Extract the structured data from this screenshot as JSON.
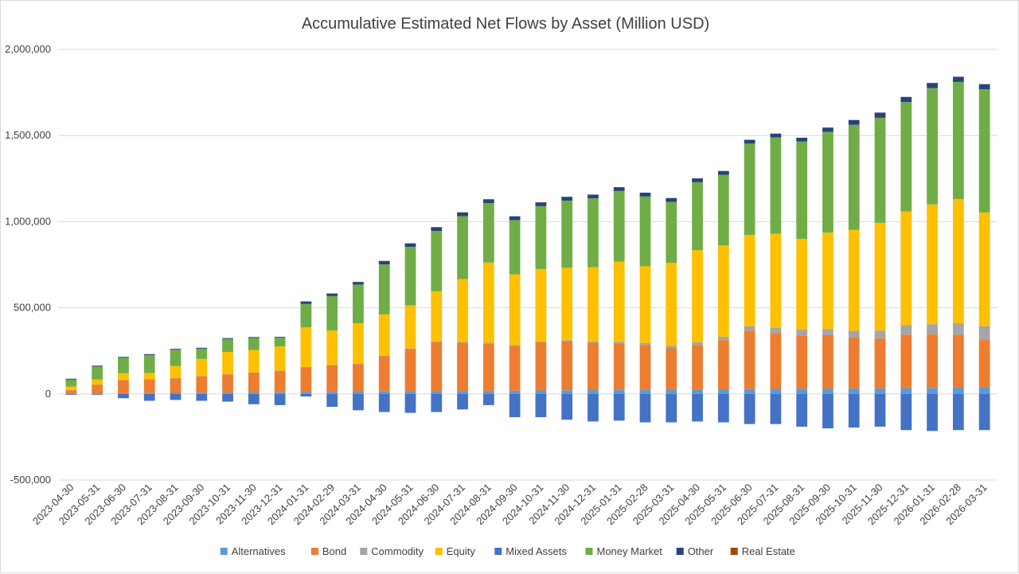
{
  "chart_data": {
    "type": "bar",
    "stacked": true,
    "title": "Accumulative Estimated Net Flows by Asset (Million USD)",
    "xlabel": "",
    "ylabel": "",
    "ylim": [
      -500000,
      2000000
    ],
    "y_ticks": [
      2000000,
      1500000,
      1000000,
      500000,
      0,
      -500000
    ],
    "y_tick_labels": [
      "2,000,000",
      "1,500,000",
      "1,000,000",
      "500,000",
      "0",
      "-500,000"
    ],
    "grid": true,
    "legend_position": "bottom",
    "categories": [
      "2023-04-30",
      "2023-05-31",
      "2023-06-30",
      "2023-07-31",
      "2023-08-31",
      "2023-09-30",
      "2023-10-31",
      "2023-11-30",
      "2023-12-31",
      "2024-01-31",
      "2024-02-29",
      "2024-03-31",
      "2024-04-30",
      "2024-05-31",
      "2024-06-30",
      "2024-07-31",
      "2024-08-31",
      "2024-09-30",
      "2024-10-31",
      "2024-11-30",
      "2024-12-31",
      "2025-01-31",
      "2025-02-28",
      "2025-03-31",
      "2025-04-30",
      "2025-05-31",
      "2025-06-30",
      "2025-07-31",
      "2025-08-31",
      "2025-09-30",
      "2025-10-31",
      "2025-11-30",
      "2025-12-31",
      "2026-01-31",
      "2026-02-28",
      "2026-03-31"
    ],
    "series": [
      {
        "name": "Alternatives",
        "color": "#5b9bd5",
        "values": [
          2000,
          3000,
          4000,
          5000,
          6000,
          7000,
          8000,
          9000,
          10000,
          11000,
          12000,
          13000,
          14000,
          15000,
          16000,
          17000,
          18000,
          19000,
          20000,
          21000,
          22000,
          23000,
          24000,
          25000,
          26000,
          27000,
          28000,
          29000,
          30000,
          31000,
          32000,
          33000,
          34000,
          35000,
          36000,
          38000
        ]
      },
      {
        "name": "Bond",
        "color": "#ed7d31",
        "values": [
          20000,
          50000,
          75000,
          80000,
          85000,
          95000,
          105000,
          115000,
          125000,
          145000,
          155000,
          160000,
          205000,
          245000,
          285000,
          280000,
          275000,
          260000,
          280000,
          285000,
          275000,
          270000,
          260000,
          240000,
          255000,
          285000,
          340000,
          325000,
          310000,
          310000,
          295000,
          290000,
          310000,
          310000,
          305000,
          275000
        ]
      },
      {
        "name": "Commodity",
        "color": "#a5a5a5",
        "values": [
          1000,
          1000,
          1000,
          1000,
          1000,
          1000,
          1000,
          1000,
          1000,
          1000,
          1000,
          2000,
          3000,
          4000,
          5000,
          5000,
          5000,
          5000,
          5000,
          6000,
          8000,
          10000,
          12000,
          15000,
          18000,
          20000,
          25000,
          30000,
          35000,
          35000,
          40000,
          45000,
          55000,
          60000,
          70000,
          80000
        ]
      },
      {
        "name": "Equity",
        "color": "#ffc000",
        "values": [
          20000,
          30000,
          40000,
          35000,
          70000,
          100000,
          130000,
          130000,
          140000,
          230000,
          200000,
          235000,
          240000,
          250000,
          290000,
          365000,
          465000,
          410000,
          420000,
          420000,
          430000,
          465000,
          445000,
          480000,
          535000,
          530000,
          530000,
          545000,
          525000,
          560000,
          585000,
          625000,
          660000,
          695000,
          720000,
          660000
        ]
      },
      {
        "name": "Mixed Assets",
        "color": "#4472c4",
        "values": [
          -5000,
          -5000,
          -25000,
          -40000,
          -35000,
          -40000,
          -45000,
          -60000,
          -65000,
          -15000,
          -75000,
          -95000,
          -105000,
          -110000,
          -105000,
          -90000,
          -65000,
          -135000,
          -135000,
          -150000,
          -160000,
          -155000,
          -165000,
          -165000,
          -160000,
          -165000,
          -175000,
          -175000,
          -190000,
          -200000,
          -195000,
          -190000,
          -210000,
          -215000,
          -210000,
          -210000
        ]
      },
      {
        "name": "Money Market",
        "color": "#70ad47",
        "values": [
          40000,
          75000,
          90000,
          105000,
          95000,
          60000,
          75000,
          70000,
          50000,
          135000,
          200000,
          225000,
          290000,
          340000,
          350000,
          365000,
          345000,
          315000,
          365000,
          390000,
          400000,
          410000,
          405000,
          355000,
          395000,
          410000,
          530000,
          560000,
          565000,
          585000,
          610000,
          610000,
          635000,
          675000,
          680000,
          715000
        ]
      },
      {
        "name": "Other",
        "color": "#264478",
        "values": [
          5000,
          5000,
          5000,
          5000,
          5000,
          5000,
          5000,
          5000,
          5000,
          15000,
          15000,
          15000,
          20000,
          20000,
          22000,
          22000,
          22000,
          22000,
          22000,
          22000,
          22000,
          22000,
          22000,
          22000,
          22000,
          22000,
          22000,
          22000,
          22000,
          25000,
          28000,
          30000,
          30000,
          30000,
          30000,
          30000
        ]
      },
      {
        "name": "Real Estate",
        "color": "#9e480e",
        "values": [
          0,
          0,
          0,
          0,
          0,
          0,
          0,
          0,
          0,
          0,
          0,
          0,
          0,
          0,
          0,
          0,
          0,
          0,
          0,
          0,
          0,
          0,
          0,
          0,
          0,
          0,
          0,
          0,
          0,
          0,
          0,
          0,
          0,
          0,
          0,
          0
        ]
      }
    ]
  }
}
